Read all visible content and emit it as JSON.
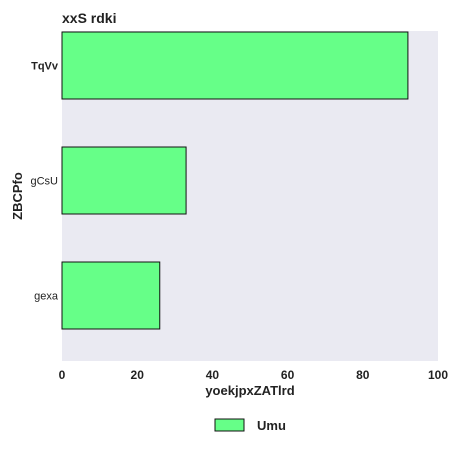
{
  "colors": {
    "bar_fill": "#66ff88",
    "bar_stroke": "#111111",
    "plot_background": "#eaeaf2",
    "text": "#222222"
  },
  "chart_data": {
    "type": "bar",
    "orientation": "horizontal",
    "title": "xxS rdki",
    "xlabel": "yoekjpxZATlrd",
    "ylabel": "ZBCPfo",
    "categories": [
      "TqVv",
      "gCsU",
      "gexa"
    ],
    "series": [
      {
        "name": "Umu",
        "values": [
          92,
          33,
          26
        ]
      }
    ],
    "xlim": [
      0,
      100
    ],
    "xticks": [
      "0",
      "20",
      "40",
      "60",
      "80",
      "100"
    ],
    "grid": false,
    "legend_position": "bottom-center"
  }
}
